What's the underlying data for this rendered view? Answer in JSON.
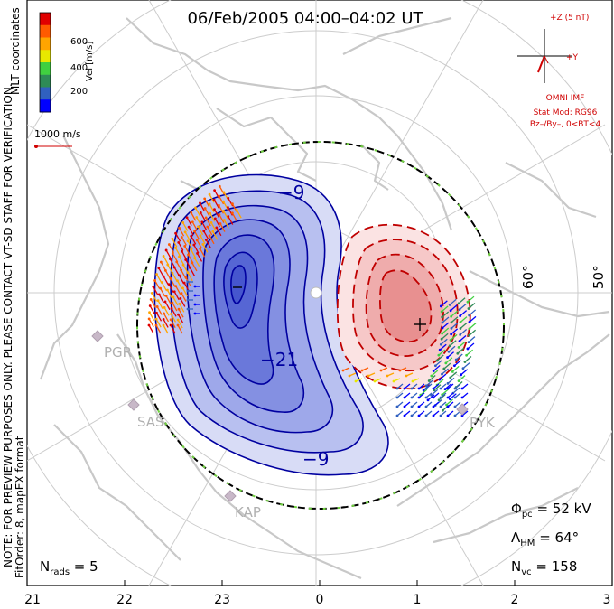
{
  "title": "06/Feb/2005 04:00–04:02 UT",
  "colorbar": {
    "label": "Vel [m/s]",
    "ticks": [
      "600",
      "400",
      "200"
    ],
    "colors": [
      "#e00000",
      "#ff5a00",
      "#ffa500",
      "#e8e800",
      "#40d040",
      "#2e8b57",
      "#3060c0",
      "#0000ff"
    ]
  },
  "coord_label": "MLT coordinates",
  "ref_vector_label": "1000 m/s",
  "imf": {
    "z_label": "+Z (5 nT)",
    "y_label": "+Y",
    "source": "OMNI IMF",
    "model_line1": "Stat Mod: RG96",
    "model_line2": "Bz–/By–, 0<BT<4"
  },
  "note": "NOTE: FOR PREVIEW PURPOSES ONLY. PLEASE CONTACT VT-SD STAFF FOR VERIFICATION.",
  "fitorder": "FitOrder: 8, mapEX format",
  "lat_labels": [
    "60°",
    "50°"
  ],
  "stations": [
    "PGR",
    "SAS",
    "KAP",
    "PYK"
  ],
  "contour_labels": [
    "−9",
    "−21",
    "−9"
  ],
  "stats": {
    "phi_pc": "Φ",
    "phi_sub": "pc",
    "phi_val": " = 52 kV",
    "lambda": "Λ",
    "lambda_sub": "HM",
    "lambda_val": " = 64°",
    "nvc": "N",
    "nvc_sub": "vc",
    "nvc_val": " = 158",
    "nrads": "N",
    "nrads_sub": "rads",
    "nrads_val": " = 5"
  },
  "mlt_ticks": [
    "21",
    "22",
    "23",
    "0",
    "1",
    "2",
    "3"
  ],
  "colors": {
    "neg_fill": "#4d5ee0",
    "pos_fill": "#e85050",
    "neg_line": "#0000a0",
    "pos_line": "#c00000",
    "map": "#c8c8c8",
    "grid": "#cccccc",
    "accent": "#d00000"
  }
}
